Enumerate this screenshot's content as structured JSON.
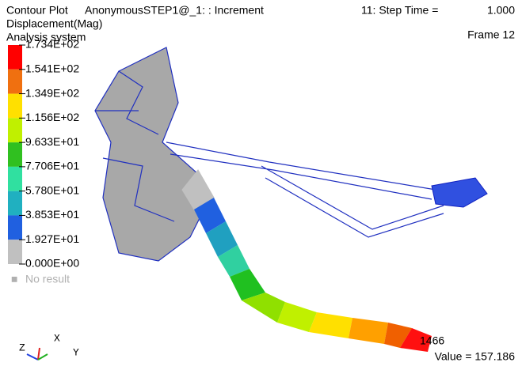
{
  "header": {
    "title": "Contour Plot",
    "model": "AnonymousSTEP1@_1: : Increment",
    "step": "11: Step Time =",
    "step_time": "1.000",
    "quantity": "Displacement(Mag)",
    "system": "Analysis system",
    "frame": "Frame 12"
  },
  "legend": {
    "labels": [
      "1.734E+02",
      "1.541E+02",
      "1.349E+02",
      "1.156E+02",
      "9.633E+01",
      "7.706E+01",
      "5.780E+01",
      "3.853E+01",
      "1.927E+01",
      "0.000E+00"
    ],
    "no_result": "No result"
  },
  "probe": {
    "node": "1466",
    "value": "Value = 157.186"
  },
  "triad": {
    "z": "Z",
    "x": "X",
    "y": "Y"
  }
}
